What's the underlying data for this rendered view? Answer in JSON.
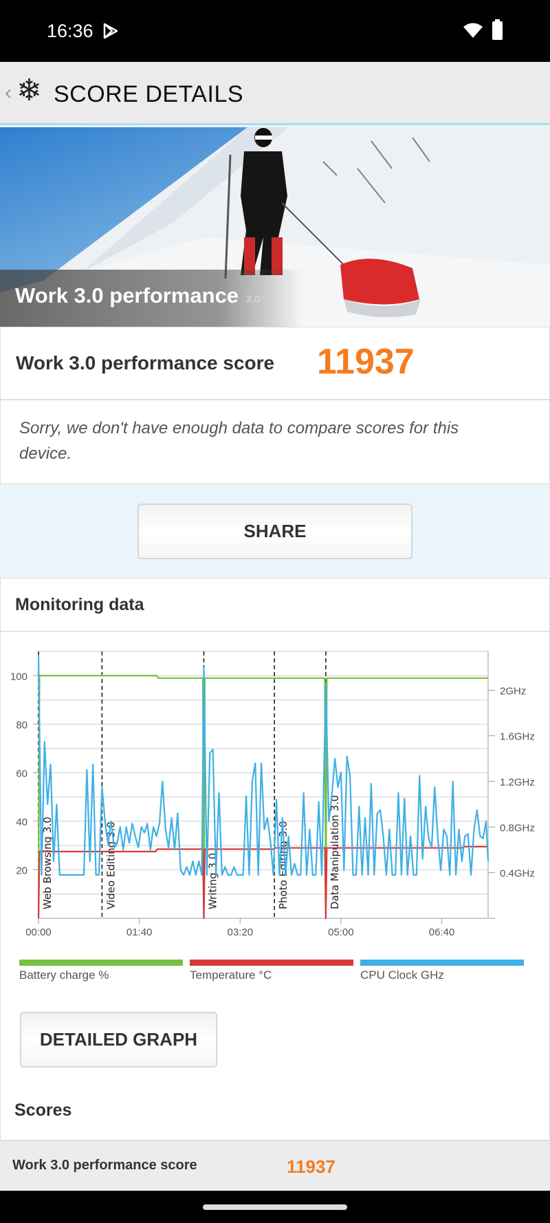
{
  "status_bar": {
    "time": "16:36",
    "icons": [
      "play-store-icon",
      "wifi-icon",
      "battery-icon"
    ]
  },
  "header": {
    "title": "SCORE DETAILS",
    "icons": [
      "back-chevron-icon",
      "snowflake-icon"
    ]
  },
  "hero": {
    "title": "Work 3.0 performance",
    "version": "3.0"
  },
  "score": {
    "label": "Work 3.0 performance score",
    "value": "11937",
    "color": "#f57c1f"
  },
  "compare_message": "Sorry, we don't have enough data to compare scores for this device.",
  "share_label": "SHARE",
  "monitoring": {
    "title": "Monitoring data",
    "detailed_graph_label": "DETAILED GRAPH"
  },
  "scores": {
    "title": "Scores",
    "rows": [
      {
        "label": "Work 3.0 performance score",
        "value": "11937"
      }
    ]
  },
  "chart_data": {
    "type": "line",
    "x_unit": "mm:ss",
    "x_ticks": [
      "00:00",
      "01:40",
      "03:20",
      "05:00",
      "06:40"
    ],
    "xlim_seconds": [
      0,
      446
    ],
    "y_left": {
      "ticks": [
        "20",
        "40",
        "60",
        "80",
        "100"
      ],
      "range": [
        0,
        110
      ]
    },
    "y_right": {
      "ticks": [
        "0.4GHz",
        "0.8GHz",
        "1.2GHz",
        "1.6GHz",
        "2GHz"
      ],
      "range": [
        0,
        2.34
      ]
    },
    "grid": true,
    "legend_position": "bottom",
    "sections": [
      {
        "label": "Web Browsing 3.0",
        "start": 0
      },
      {
        "label": "Video Editing 3.0",
        "start": 63
      },
      {
        "label": "Writing 3.0",
        "start": 164
      },
      {
        "label": "Photo Editing 3.0",
        "start": 234
      },
      {
        "label": "Data Manipulation 3.0",
        "start": 285
      }
    ],
    "series": [
      {
        "name": "Battery charge %",
        "color": "#76c043",
        "axis": "left",
        "points": [
          [
            0,
            0
          ],
          [
            1,
            100
          ],
          [
            117,
            100
          ],
          [
            119,
            99
          ],
          [
            163,
            99
          ],
          [
            164,
            0
          ],
          [
            165,
            99
          ],
          [
            284,
            99
          ],
          [
            285,
            0
          ],
          [
            286,
            99
          ],
          [
            446,
            99
          ]
        ]
      },
      {
        "name": "Temperature °C",
        "color": "#d63a3a",
        "axis": "left",
        "points": [
          [
            0,
            0
          ],
          [
            1,
            27.5
          ],
          [
            116,
            27.5
          ],
          [
            118,
            28.5
          ],
          [
            163,
            28.5
          ],
          [
            164,
            0
          ],
          [
            165,
            28.5
          ],
          [
            233,
            28.5
          ],
          [
            235,
            29
          ],
          [
            284,
            29
          ],
          [
            285,
            0
          ],
          [
            286,
            29
          ],
          [
            420,
            29
          ],
          [
            422,
            29.5
          ],
          [
            446,
            29.5
          ]
        ]
      },
      {
        "name": "CPU Clock GHz",
        "color": "#3fb0e6",
        "axis": "right",
        "points": [
          [
            0,
            2.3
          ],
          [
            3,
            0.38
          ],
          [
            6,
            1.55
          ],
          [
            9,
            1.0
          ],
          [
            12,
            1.35
          ],
          [
            15,
            0.5
          ],
          [
            18,
            1.0
          ],
          [
            21,
            0.38
          ],
          [
            24,
            0.38
          ],
          [
            27,
            0.38
          ],
          [
            30,
            0.38
          ],
          [
            33,
            0.38
          ],
          [
            36,
            0.38
          ],
          [
            39,
            0.38
          ],
          [
            42,
            0.38
          ],
          [
            45,
            0.38
          ],
          [
            48,
            1.3
          ],
          [
            51,
            0.5
          ],
          [
            54,
            1.35
          ],
          [
            57,
            0.38
          ],
          [
            60,
            0.38
          ],
          [
            63,
            1.15
          ],
          [
            66,
            0.85
          ],
          [
            69,
            0.65
          ],
          [
            72,
            0.85
          ],
          [
            75,
            0.62
          ],
          [
            78,
            0.66
          ],
          [
            81,
            0.8
          ],
          [
            84,
            0.6
          ],
          [
            87,
            0.8
          ],
          [
            90,
            0.66
          ],
          [
            93,
            0.83
          ],
          [
            96,
            0.72
          ],
          [
            99,
            0.62
          ],
          [
            102,
            0.8
          ],
          [
            105,
            0.75
          ],
          [
            108,
            0.83
          ],
          [
            111,
            0.6
          ],
          [
            114,
            0.8
          ],
          [
            117,
            0.72
          ],
          [
            120,
            0.83
          ],
          [
            123,
            1.2
          ],
          [
            126,
            0.78
          ],
          [
            129,
            0.62
          ],
          [
            132,
            0.88
          ],
          [
            135,
            0.6
          ],
          [
            138,
            0.92
          ],
          [
            141,
            0.42
          ],
          [
            144,
            0.38
          ],
          [
            147,
            0.45
          ],
          [
            150,
            0.38
          ],
          [
            153,
            0.5
          ],
          [
            156,
            0.38
          ],
          [
            159,
            0.5
          ],
          [
            162,
            0.38
          ],
          [
            164,
            2.2
          ],
          [
            167,
            0.38
          ],
          [
            170,
            1.45
          ],
          [
            173,
            1.48
          ],
          [
            176,
            0.38
          ],
          [
            179,
            1.1
          ],
          [
            182,
            0.38
          ],
          [
            185,
            0.45
          ],
          [
            188,
            0.38
          ],
          [
            191,
            0.38
          ],
          [
            194,
            0.45
          ],
          [
            197,
            0.38
          ],
          [
            200,
            0.38
          ],
          [
            203,
            0.38
          ],
          [
            206,
            1.07
          ],
          [
            209,
            0.38
          ],
          [
            212,
            1.2
          ],
          [
            215,
            1.36
          ],
          [
            218,
            0.38
          ],
          [
            221,
            1.36
          ],
          [
            224,
            0.78
          ],
          [
            227,
            0.88
          ],
          [
            230,
            0.68
          ],
          [
            233,
            0.38
          ],
          [
            236,
            1.04
          ],
          [
            239,
            0.38
          ],
          [
            242,
            0.88
          ],
          [
            245,
            0.38
          ],
          [
            248,
            0.72
          ],
          [
            251,
            0.38
          ],
          [
            254,
            0.48
          ],
          [
            257,
            0.38
          ],
          [
            260,
            0.38
          ],
          [
            263,
            1.1
          ],
          [
            266,
            0.38
          ],
          [
            269,
            0.78
          ],
          [
            272,
            0.38
          ],
          [
            275,
            0.38
          ],
          [
            278,
            1.02
          ],
          [
            281,
            0.38
          ],
          [
            285,
            2.05
          ],
          [
            288,
            0.85
          ],
          [
            291,
            1.08
          ],
          [
            294,
            1.4
          ],
          [
            297,
            1.15
          ],
          [
            300,
            1.28
          ],
          [
            303,
            0.42
          ],
          [
            306,
            1.42
          ],
          [
            309,
            1.25
          ],
          [
            312,
            0.38
          ],
          [
            315,
            0.38
          ],
          [
            318,
            0.98
          ],
          [
            321,
            0.38
          ],
          [
            324,
            0.88
          ],
          [
            327,
            0.38
          ],
          [
            330,
            1.18
          ],
          [
            333,
            0.38
          ],
          [
            336,
            0.92
          ],
          [
            339,
            0.95
          ],
          [
            342,
            0.72
          ],
          [
            345,
            0.38
          ],
          [
            348,
            0.78
          ],
          [
            351,
            0.38
          ],
          [
            354,
            0.38
          ],
          [
            357,
            1.1
          ],
          [
            360,
            0.38
          ],
          [
            363,
            1.05
          ],
          [
            366,
            0.38
          ],
          [
            369,
            0.72
          ],
          [
            372,
            0.38
          ],
          [
            375,
            0.38
          ],
          [
            378,
            1.25
          ],
          [
            381,
            0.52
          ],
          [
            384,
            0.98
          ],
          [
            387,
            0.7
          ],
          [
            390,
            0.62
          ],
          [
            393,
            1.15
          ],
          [
            396,
            0.72
          ],
          [
            399,
            0.42
          ],
          [
            402,
            0.78
          ],
          [
            405,
            0.72
          ],
          [
            408,
            0.38
          ],
          [
            411,
            1.2
          ],
          [
            414,
            0.38
          ],
          [
            417,
            0.78
          ],
          [
            420,
            0.5
          ],
          [
            423,
            0.72
          ],
          [
            426,
            0.74
          ],
          [
            429,
            0.38
          ],
          [
            432,
            0.78
          ],
          [
            435,
            0.95
          ],
          [
            438,
            0.72
          ],
          [
            441,
            0.7
          ],
          [
            444,
            0.85
          ],
          [
            446,
            0.5
          ]
        ]
      }
    ]
  }
}
